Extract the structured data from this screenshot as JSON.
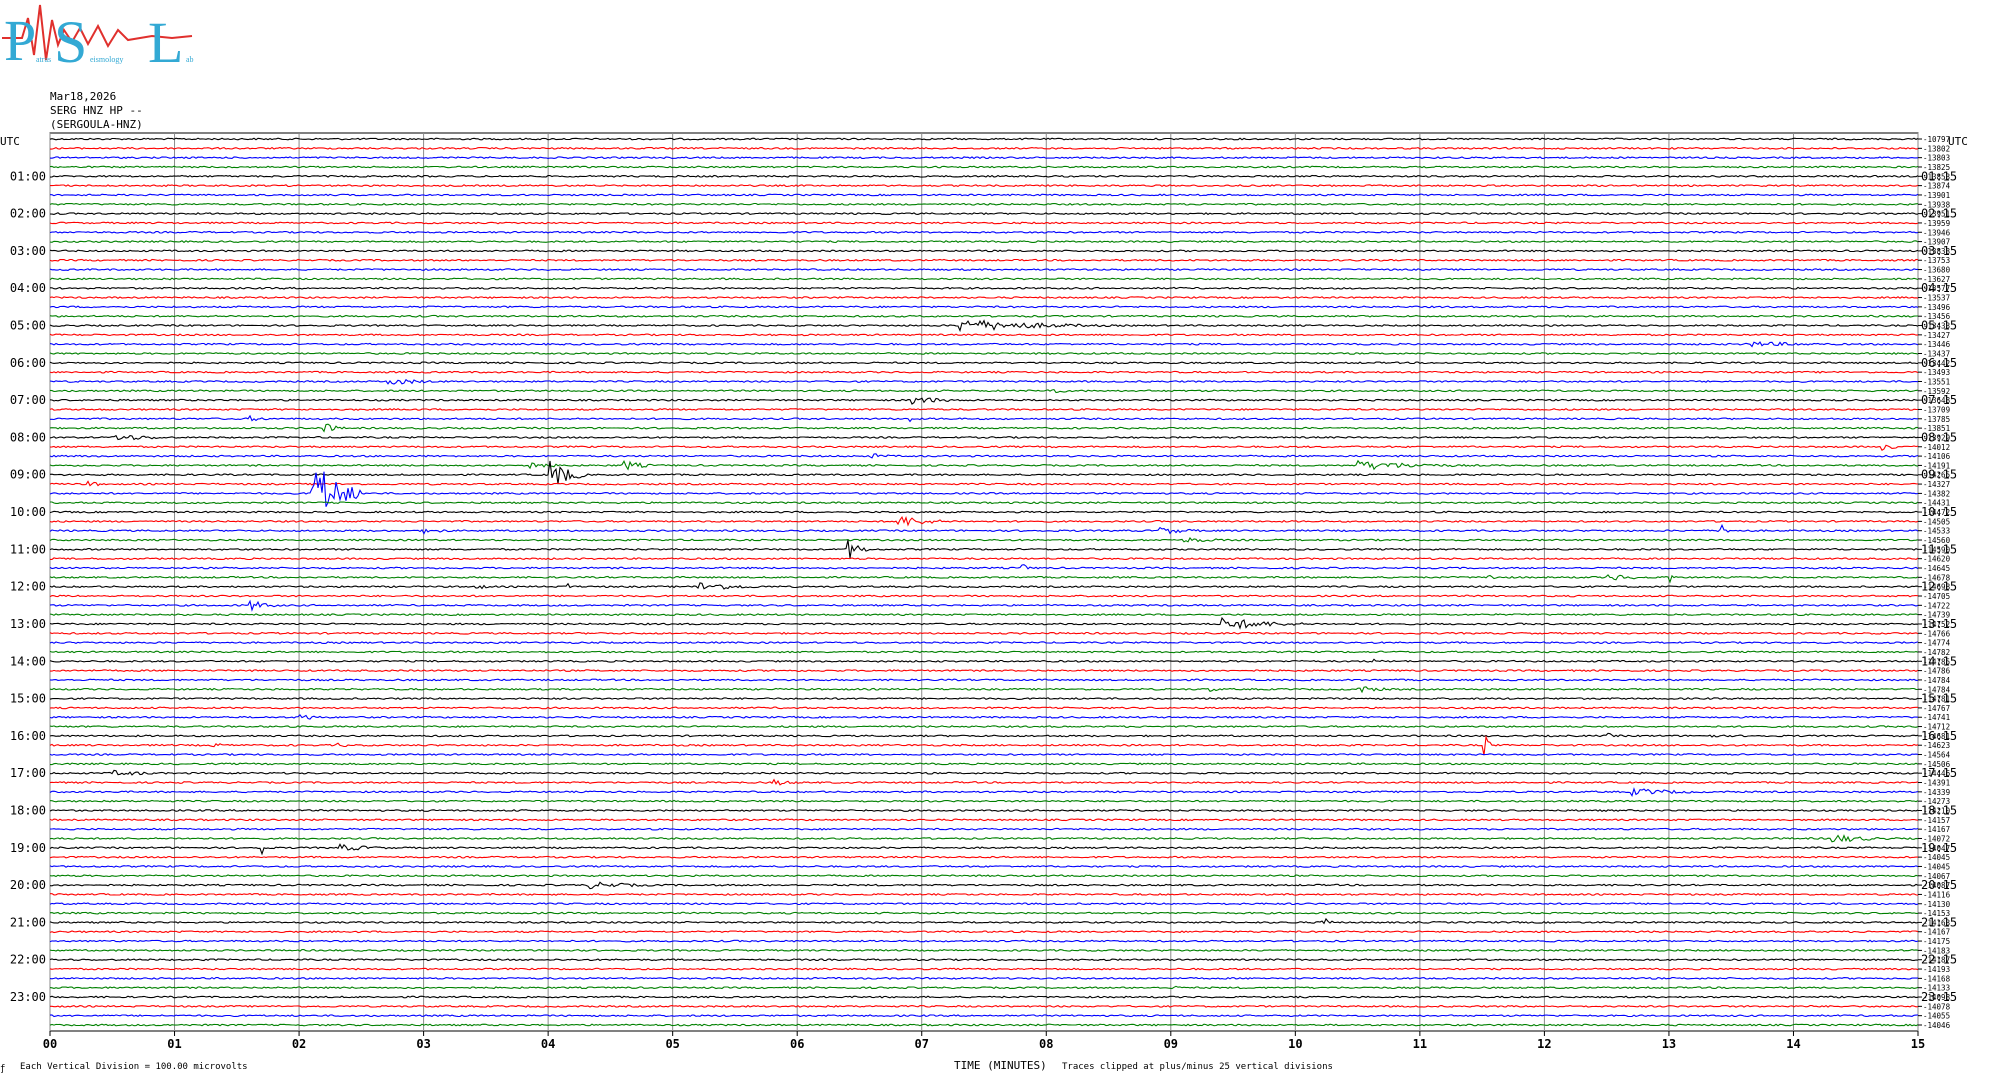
{
  "logo": {
    "letters": [
      "P",
      "S",
      "L"
    ],
    "words": [
      "atras",
      "eismology",
      "ab"
    ],
    "colors": {
      "main": "#33a9d4",
      "wave": "#e0302d"
    }
  },
  "header": {
    "date": "Mar18,2026",
    "station": "SERG HNZ HP --",
    "name": "(SERGOULA-HNZ)"
  },
  "axis": {
    "left_title": "UTC",
    "right_title": "UTC",
    "x_title": "TIME (MINUTES)"
  },
  "footer": {
    "left_mark": "ƒ",
    "scale_note": "Each Vertical Division =  100.00 microvolts",
    "clip_note": "Traces clipped at plus/minus 25 vertical divisions"
  },
  "chart_data": {
    "type": "line",
    "subtype": "helicorder",
    "x_label": "TIME (MINUTES)",
    "x_range": [
      0,
      15
    ],
    "x_ticks": [
      "00",
      "01",
      "02",
      "03",
      "04",
      "05",
      "06",
      "07",
      "08",
      "09",
      "10",
      "11",
      "12",
      "13",
      "14",
      "15"
    ],
    "rows_per_hour": 4,
    "minutes_per_row": 15,
    "row_colors": [
      "#000000",
      "#ff0000",
      "#0000ff",
      "#008000"
    ],
    "grid": true,
    "left_time_labels": [
      "01:00",
      "02:00",
      "03:00",
      "04:00",
      "05:00",
      "06:00",
      "07:00",
      "08:00",
      "09:00",
      "10:00",
      "11:00",
      "12:00",
      "13:00",
      "14:00",
      "15:00",
      "16:00",
      "17:00",
      "18:00",
      "19:00",
      "20:00",
      "21:00",
      "22:00",
      "23:00"
    ],
    "right_time_labels": [
      "01:15",
      "02:15",
      "03:15",
      "04:15",
      "05:15",
      "06:15",
      "07:15",
      "08:15",
      "09:15",
      "10:15",
      "11:15",
      "12:15",
      "13:15",
      "14:15",
      "15:15",
      "16:15",
      "17:15",
      "18:15",
      "19:15",
      "20:15",
      "21:15",
      "22:15",
      "23:15"
    ],
    "row_offsets": [
      "-10797",
      "-13802",
      "-13803",
      "-13825",
      "-13853",
      "-13874",
      "-13901",
      "-13938",
      "-13951",
      "-13959",
      "-13946",
      "-13907",
      "-13833",
      "-13753",
      "-13680",
      "-13627",
      "-13577",
      "-13537",
      "-13496",
      "-13456",
      "-13433",
      "-13427",
      "-13446",
      "-13437",
      "-13442",
      "-13493",
      "-13551",
      "-13592",
      "-13648",
      "-13709",
      "-13785",
      "-13851",
      "-13929",
      "-14012",
      "-14106",
      "-14191",
      "-14265",
      "-14327",
      "-14382",
      "-14431",
      "-14472",
      "-14505",
      "-14533",
      "-14560",
      "-14590",
      "-14620",
      "-14645",
      "-14678",
      "-14698",
      "-14705",
      "-14722",
      "-14739",
      "-14752",
      "-14766",
      "-14774",
      "-14782",
      "-14785",
      "-14786",
      "-14784",
      "-14784",
      "-14781",
      "-14767",
      "-14741",
      "-14712",
      "-14681",
      "-14623",
      "-14564",
      "-14506",
      "-14446",
      "-14391",
      "-14339",
      "-14273",
      "-14210",
      "-14157",
      "-14167",
      "-14072",
      "-14047",
      "-14045",
      "-14045",
      "-14067",
      "-14087",
      "-14116",
      "-14130",
      "-14153",
      "-14163",
      "-14167",
      "-14175",
      "-14183",
      "-14187",
      "-14193",
      "-14168",
      "-14133",
      "-14098",
      "-14078",
      "-14055",
      "-14046"
    ],
    "events": [
      {
        "row": 20,
        "minute": 7.3,
        "end": 8.6,
        "amp": 7
      },
      {
        "row": 20,
        "minute": 2.2,
        "end": 2.3,
        "amp": 3
      },
      {
        "row": 22,
        "minute": 13.6,
        "end": 14.8,
        "amp": 3
      },
      {
        "row": 26,
        "minute": 2.7,
        "end": 3.3,
        "amp": 4
      },
      {
        "row": 27,
        "minute": 8.0,
        "end": 8.3,
        "amp": 4
      },
      {
        "row": 28,
        "minute": 6.9,
        "end": 7.4,
        "amp": 5
      },
      {
        "row": 30,
        "minute": 1.6,
        "end": 1.9,
        "amp": 3
      },
      {
        "row": 30,
        "minute": 6.9,
        "end": 6.95,
        "amp": 5
      },
      {
        "row": 31,
        "minute": 2.2,
        "end": 2.4,
        "amp": 6
      },
      {
        "row": 32,
        "minute": 0.5,
        "end": 1.2,
        "amp": 4
      },
      {
        "row": 33,
        "minute": 14.7,
        "end": 14.95,
        "amp": 4
      },
      {
        "row": 34,
        "minute": 6.6,
        "end": 6.9,
        "amp": 3
      },
      {
        "row": 35,
        "minute": 3.8,
        "end": 4.3,
        "amp": 4
      },
      {
        "row": 35,
        "minute": 4.6,
        "end": 4.9,
        "amp": 6
      },
      {
        "row": 35,
        "minute": 10.5,
        "end": 11.6,
        "amp": 5
      },
      {
        "row": 36,
        "minute": 4.0,
        "end": 4.3,
        "amp": 20
      },
      {
        "row": 37,
        "minute": 0.3,
        "end": 0.6,
        "amp": 3
      },
      {
        "row": 38,
        "minute": 2.1,
        "end": 2.5,
        "amp": 40
      },
      {
        "row": 41,
        "minute": 6.8,
        "end": 7.3,
        "amp": 7
      },
      {
        "row": 42,
        "minute": 3.0,
        "end": 3.4,
        "amp": 3
      },
      {
        "row": 42,
        "minute": 8.9,
        "end": 9.4,
        "amp": 4
      },
      {
        "row": 42,
        "minute": 13.4,
        "end": 13.5,
        "amp": 15
      },
      {
        "row": 43,
        "minute": 9.1,
        "end": 9.7,
        "amp": 3
      },
      {
        "row": 44,
        "minute": 6.4,
        "end": 6.6,
        "amp": 12
      },
      {
        "row": 46,
        "minute": 7.8,
        "end": 7.9,
        "amp": 6
      },
      {
        "row": 47,
        "minute": 11.5,
        "end": 11.8,
        "amp": 4
      },
      {
        "row": 47,
        "minute": 12.5,
        "end": 13.0,
        "amp": 4
      },
      {
        "row": 47,
        "minute": 13.0,
        "end": 13.05,
        "amp": 25
      },
      {
        "row": 48,
        "minute": 3.4,
        "end": 3.6,
        "amp": 4
      },
      {
        "row": 48,
        "minute": 4.15,
        "end": 4.2,
        "amp": 14
      },
      {
        "row": 48,
        "minute": 5.2,
        "end": 5.9,
        "amp": 5
      },
      {
        "row": 50,
        "minute": 1.6,
        "end": 1.9,
        "amp": 6
      },
      {
        "row": 52,
        "minute": 9.4,
        "end": 10.2,
        "amp": 7
      },
      {
        "row": 56,
        "minute": 10.6,
        "end": 10.8,
        "amp": 3
      },
      {
        "row": 59,
        "minute": 10.5,
        "end": 10.9,
        "amp": 4
      },
      {
        "row": 59,
        "minute": 9.3,
        "end": 9.5,
        "amp": 3
      },
      {
        "row": 62,
        "minute": 2.0,
        "end": 2.2,
        "amp": 6
      },
      {
        "row": 64,
        "minute": 12.5,
        "end": 12.7,
        "amp": 3
      },
      {
        "row": 64,
        "minute": 13.3,
        "end": 13.5,
        "amp": 3
      },
      {
        "row": 65,
        "minute": 11.5,
        "end": 11.6,
        "amp": 18
      },
      {
        "row": 65,
        "minute": 1.3,
        "end": 1.5,
        "amp": 3
      },
      {
        "row": 65,
        "minute": 2.3,
        "end": 2.5,
        "amp": 3
      },
      {
        "row": 68,
        "minute": 0.5,
        "end": 1.2,
        "amp": 3
      },
      {
        "row": 69,
        "minute": 5.8,
        "end": 6.1,
        "amp": 4
      },
      {
        "row": 70,
        "minute": 12.7,
        "end": 13.5,
        "amp": 4
      },
      {
        "row": 75,
        "minute": 14.3,
        "end": 14.9,
        "amp": 5
      },
      {
        "row": 76,
        "minute": 1.7,
        "end": 1.75,
        "amp": 30
      },
      {
        "row": 76,
        "minute": 2.3,
        "end": 2.9,
        "amp": 4
      },
      {
        "row": 80,
        "minute": 4.3,
        "end": 5.1,
        "amp": 4
      },
      {
        "row": 84,
        "minute": 10.2,
        "end": 10.35,
        "amp": 8
      },
      {
        "row": 91,
        "minute": 9.0,
        "end": 9.15,
        "amp": 3
      }
    ]
  }
}
